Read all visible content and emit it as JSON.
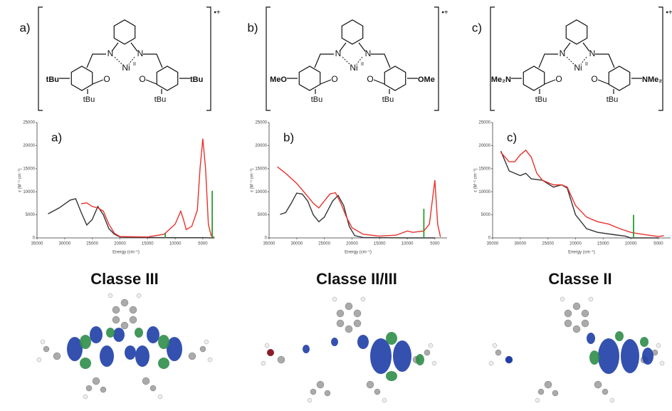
{
  "chart_data": [
    {
      "type": "line",
      "label": "a)",
      "x_label": "Energy (cm⁻¹)",
      "y_label": "ε (M⁻¹ cm⁻¹)",
      "xlim": [
        35000,
        2800
      ],
      "ylim": [
        0,
        25000
      ],
      "xticks": [
        35000,
        30000,
        25000,
        20000,
        15000,
        10000,
        5000
      ],
      "yticks": [
        0,
        5000,
        10000,
        15000,
        20000,
        25000
      ],
      "series": [
        {
          "color": "#333333",
          "x": [
            33000,
            31000,
            29000,
            28000,
            27000,
            26000,
            25000,
            24000,
            23000,
            22000,
            21000,
            20000,
            15000,
            10000,
            5000,
            3000
          ],
          "values": [
            5200,
            6500,
            8200,
            8500,
            5500,
            2800,
            4000,
            6800,
            5000,
            2000,
            800,
            200,
            100,
            50,
            50,
            0
          ]
        },
        {
          "color": "#e8322d",
          "x": [
            27000,
            26000,
            25000,
            24000,
            23000,
            22000,
            21000,
            20000,
            15000,
            12000,
            10000,
            9000,
            8500,
            8000,
            7000,
            6000,
            5500,
            5000,
            4500,
            4000,
            3500,
            3000
          ],
          "values": [
            7400,
            7600,
            6800,
            6500,
            5800,
            3000,
            1000,
            300,
            200,
            800,
            3000,
            5800,
            4000,
            1800,
            2500,
            6000,
            15000,
            21500,
            15000,
            3000,
            500,
            200
          ]
        },
        {
          "color": "#2e9a2e",
          "style": "stick",
          "x": [
            11800,
            3300
          ],
          "values": [
            1000,
            10200
          ]
        }
      ]
    },
    {
      "type": "line",
      "label": "b)",
      "x_label": "Energy (cm⁻¹)",
      "y_label": "ε (M⁻¹ cm⁻¹)",
      "xlim": [
        35000,
        2800
      ],
      "ylim": [
        0,
        25000
      ],
      "xticks": [
        35000,
        30000,
        25000,
        20000,
        15000,
        10000,
        5000
      ],
      "yticks": [
        0,
        5000,
        10000,
        15000,
        20000,
        25000
      ],
      "series": [
        {
          "color": "#333333",
          "x": [
            33000,
            32000,
            31000,
            30000,
            29000,
            28000,
            27000,
            26000,
            25000,
            23500,
            22500,
            21500,
            20500,
            19500,
            18000,
            10000,
            5000
          ],
          "values": [
            5100,
            5500,
            7500,
            9700,
            9500,
            8000,
            5000,
            3500,
            4500,
            8000,
            9200,
            7000,
            2500,
            500,
            100,
            0,
            0
          ]
        },
        {
          "color": "#e8322d",
          "x": [
            33500,
            32000,
            30000,
            28000,
            27000,
            26000,
            25000,
            24000,
            23000,
            22000,
            21000,
            20000,
            18000,
            15000,
            12000,
            10000,
            9000,
            7000,
            6000,
            5000,
            4500,
            4000
          ],
          "values": [
            15400,
            14000,
            11800,
            9000,
            7500,
            6500,
            8000,
            9500,
            9800,
            7500,
            4500,
            2200,
            800,
            400,
            600,
            1500,
            1200,
            1500,
            3000,
            12500,
            3000,
            200
          ]
        },
        {
          "color": "#2e9a2e",
          "style": "stick",
          "x": [
            7000
          ],
          "values": [
            6300
          ]
        }
      ]
    },
    {
      "type": "line",
      "label": "c)",
      "x_label": "Energy (cm⁻¹)",
      "y_label": "ε (M⁻¹ cm⁻¹)",
      "xlim": [
        35000,
        2800
      ],
      "ylim": [
        0,
        25000
      ],
      "xticks": [
        35000,
        30000,
        25000,
        20000,
        15000,
        10000,
        5000
      ],
      "yticks": [
        0,
        5000,
        10000,
        15000,
        20000,
        25000
      ],
      "series": [
        {
          "color": "#333333",
          "x": [
            33500,
            32000,
            30000,
            29000,
            28000,
            26000,
            24000,
            22500,
            21500,
            20000,
            18000,
            16000,
            13000,
            11000,
            10000,
            5000
          ],
          "values": [
            18800,
            14500,
            13500,
            14000,
            12800,
            12500,
            11000,
            11500,
            10800,
            5000,
            2000,
            1200,
            700,
            400,
            0,
            0
          ]
        },
        {
          "color": "#e8322d",
          "x": [
            33500,
            32000,
            31000,
            30000,
            29000,
            28000,
            27000,
            26000,
            24000,
            22500,
            21500,
            20000,
            18000,
            16000,
            14000,
            12000,
            10000,
            8000,
            5000,
            4000
          ],
          "values": [
            18500,
            16500,
            16500,
            18000,
            19000,
            17500,
            14000,
            12500,
            11500,
            11500,
            11000,
            7000,
            4500,
            3500,
            3000,
            2000,
            1200,
            800,
            300,
            500
          ]
        },
        {
          "color": "#2e9a2e",
          "style": "stick",
          "x": [
            9500
          ],
          "values": [
            5000
          ]
        }
      ]
    }
  ],
  "structures": [
    {
      "label": "a)",
      "charge": "•+",
      "n1": "N",
      "n2": "N",
      "metal": "Ni",
      "ox": "II",
      "o1": "O",
      "o2": "O",
      "left": "tBu",
      "right": "tBu",
      "bottom1": "tBu",
      "bottom2": "tBu"
    },
    {
      "label": "b)",
      "charge": "•+",
      "n1": "N",
      "n2": "N",
      "metal": "Ni",
      "ox": "II",
      "o1": "O",
      "o2": "O",
      "left": "MeO",
      "right": "OMe",
      "bottom1": "tBu",
      "bottom2": "tBu"
    },
    {
      "label": "c)",
      "charge": "•+",
      "n1": "N",
      "n2": "N",
      "metal": "Ni",
      "ox": "II",
      "o1": "O",
      "o2": "O",
      "left": "Me₂N",
      "right": "NMe₂",
      "bottom1": "tBu",
      "bottom2": "tBu"
    }
  ],
  "class_labels": [
    "Classe III",
    "Classe II/III",
    "Classe II"
  ]
}
